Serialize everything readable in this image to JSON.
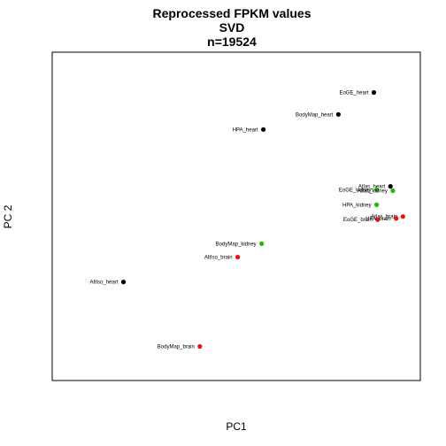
{
  "chart_data": {
    "type": "scatter",
    "title_lines": [
      "Reprocessed FPKM values",
      "SVD",
      "n=19524"
    ],
    "xlabel": "PC1",
    "ylabel": "PC 2",
    "xlim": [
      0,
      10
    ],
    "ylim": [
      0,
      10
    ],
    "ticks_shown": false,
    "grid": false,
    "colors": {
      "heart": "#000000",
      "kidney": "#22bb00",
      "brain": "#ee1111"
    },
    "points": [
      {
        "label": "EoGE_heart",
        "x": 9.44,
        "y": 8.76,
        "group": "heart"
      },
      {
        "label": "BodyMap_heart",
        "x": 8.39,
        "y": 8.09,
        "group": "heart"
      },
      {
        "label": "HPA_heart",
        "x": 6.17,
        "y": 7.63,
        "group": "heart"
      },
      {
        "label": "Atlas_heart",
        "x": 9.93,
        "y": 5.89,
        "group": "heart"
      },
      {
        "label": "AltIso_heart",
        "x": 2.03,
        "y": 2.97,
        "group": "heart"
      },
      {
        "label": "EoGE_kidney",
        "x": 9.52,
        "y": 5.79,
        "group": "kidney"
      },
      {
        "label": "Atlas_kidney",
        "x": 10.0,
        "y": 5.76,
        "group": "kidney"
      },
      {
        "label": "HPA_kidney",
        "x": 9.52,
        "y": 5.33,
        "group": "kidney"
      },
      {
        "label": "BodyMap_kidney",
        "x": 6.12,
        "y": 4.14,
        "group": "kidney"
      },
      {
        "label": "Atlas_brain",
        "x": 10.3,
        "y": 4.97,
        "group": "brain"
      },
      {
        "label": "EoGE_brain",
        "x": 9.55,
        "y": 4.88,
        "group": "brain"
      },
      {
        "label": "HPA_brain",
        "x": 10.1,
        "y": 4.91,
        "group": "brain"
      },
      {
        "label": "AltIso_brain",
        "x": 5.41,
        "y": 3.73,
        "group": "brain"
      },
      {
        "label": "BodyMap_brain",
        "x": 4.29,
        "y": 1.0,
        "group": "brain"
      }
    ]
  }
}
